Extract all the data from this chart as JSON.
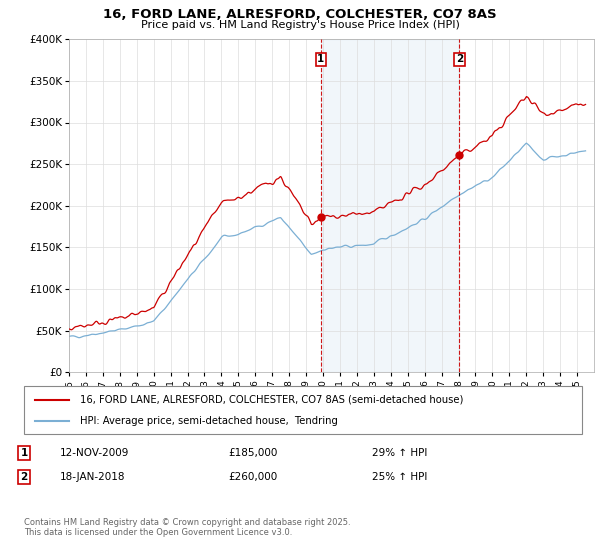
{
  "title_line1": "16, FORD LANE, ALRESFORD, COLCHESTER, CO7 8AS",
  "title_line2": "Price paid vs. HM Land Registry's House Price Index (HPI)",
  "legend_label1": "16, FORD LANE, ALRESFORD, COLCHESTER, CO7 8AS (semi-detached house)",
  "legend_label2": "HPI: Average price, semi-detached house,  Tendring",
  "annotation1_num": "1",
  "annotation1_date": "12-NOV-2009",
  "annotation1_price": "£185,000",
  "annotation1_hpi": "29% ↑ HPI",
  "annotation2_num": "2",
  "annotation2_date": "18-JAN-2018",
  "annotation2_price": "£260,000",
  "annotation2_hpi": "25% ↑ HPI",
  "footer": "Contains HM Land Registry data © Crown copyright and database right 2025.\nThis data is licensed under the Open Government Licence v3.0.",
  "sale1_year": 2009.87,
  "sale1_price": 185000,
  "sale2_year": 2018.05,
  "sale2_price": 260000,
  "color_property": "#cc0000",
  "color_hpi": "#7bafd4",
  "color_annotation_line": "#cc0000",
  "ylim_min": 0,
  "ylim_max": 400000,
  "xlim_min": 1995,
  "xlim_max": 2026
}
